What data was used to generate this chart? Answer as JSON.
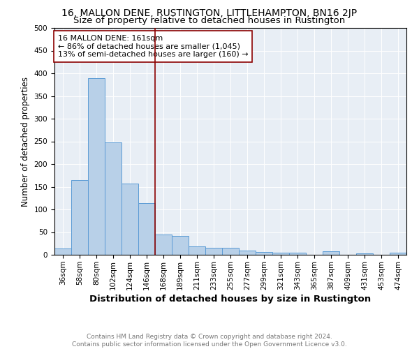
{
  "title": "16, MALLON DENE, RUSTINGTON, LITTLEHAMPTON, BN16 2JP",
  "subtitle": "Size of property relative to detached houses in Rustington",
  "xlabel": "Distribution of detached houses by size in Rustington",
  "ylabel": "Number of detached properties",
  "categories": [
    "36sqm",
    "58sqm",
    "80sqm",
    "102sqm",
    "124sqm",
    "146sqm",
    "168sqm",
    "189sqm",
    "211sqm",
    "233sqm",
    "255sqm",
    "277sqm",
    "299sqm",
    "321sqm",
    "343sqm",
    "365sqm",
    "387sqm",
    "409sqm",
    "431sqm",
    "453sqm",
    "474sqm"
  ],
  "values": [
    14,
    165,
    390,
    247,
    157,
    114,
    45,
    42,
    18,
    15,
    15,
    9,
    6,
    5,
    4,
    0,
    7,
    0,
    3,
    0,
    5
  ],
  "bar_color": "#b8d0e8",
  "bar_edge_color": "#5b9bd5",
  "vline_x_index": 6,
  "vline_color": "#8b0000",
  "annotation_text": "16 MALLON DENE: 161sqm\n← 86% of detached houses are smaller (1,045)\n13% of semi-detached houses are larger (160) →",
  "annotation_box_color": "#ffffff",
  "annotation_box_edge": "#8b0000",
  "ylim": [
    0,
    500
  ],
  "yticks": [
    0,
    50,
    100,
    150,
    200,
    250,
    300,
    350,
    400,
    450,
    500
  ],
  "background_color": "#e8eef5",
  "footer_text": "Contains HM Land Registry data © Crown copyright and database right 2024.\nContains public sector information licensed under the Open Government Licence v3.0.",
  "title_fontsize": 10,
  "subtitle_fontsize": 9.5,
  "xlabel_fontsize": 9.5,
  "ylabel_fontsize": 8.5,
  "tick_fontsize": 7.5,
  "annotation_fontsize": 8,
  "footer_fontsize": 6.5
}
